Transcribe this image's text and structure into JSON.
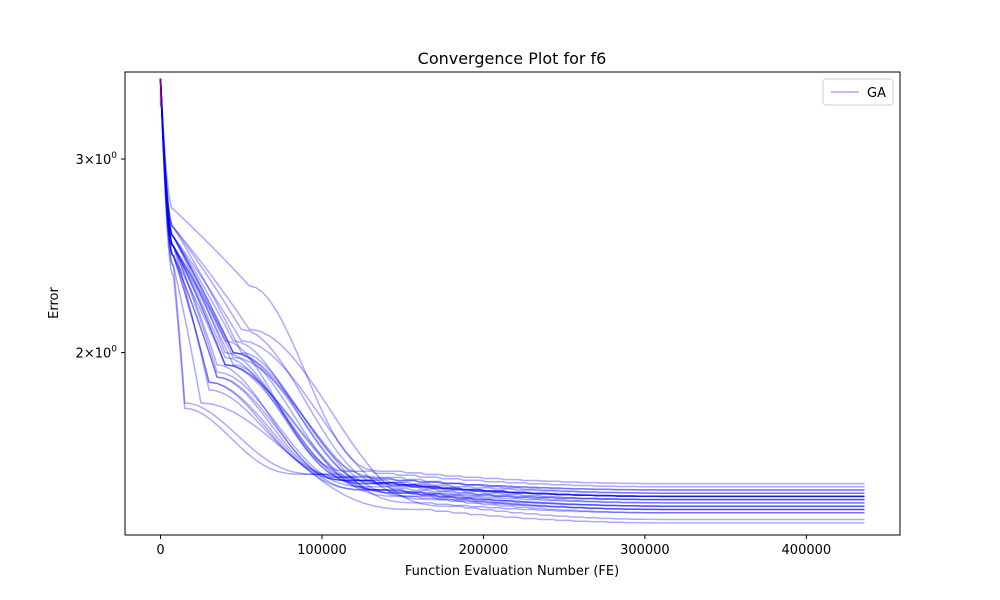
{
  "chart_data": {
    "type": "line",
    "title": "Convergence Plot for f6",
    "xlabel": "Function Evaluation Number (FE)",
    "ylabel": "Error",
    "yscale": "log",
    "xlim": [
      -22000,
      458000
    ],
    "ylim": [
      1.365,
      3.6
    ],
    "x_ticks": [
      {
        "value": 0,
        "label": "0"
      },
      {
        "value": 100000,
        "label": "100000"
      },
      {
        "value": 200000,
        "label": "200000"
      },
      {
        "value": 300000,
        "label": "300000"
      },
      {
        "value": 400000,
        "label": "400000"
      }
    ],
    "y_ticks": [
      {
        "value": 2,
        "base": "2",
        "mult": "×",
        "pow": "10",
        "exp": "0"
      },
      {
        "value": 3,
        "base": "3",
        "mult": "×",
        "pow": "10",
        "exp": "0"
      }
    ],
    "legend": {
      "label": "GA",
      "position": "top-right"
    },
    "colors": {
      "series": "#0000ff",
      "start_marker": "#ff0000"
    },
    "grid": false,
    "x_max": 436000,
    "start_value": 3.55,
    "series": [
      {
        "knee": 2.7,
        "mid_x": 55000,
        "mid_y": 2.3,
        "late_x": 140000,
        "late_y": 1.56,
        "final": 1.52
      },
      {
        "knee": 2.55,
        "mid_x": 40000,
        "mid_y": 2.05,
        "late_x": 120000,
        "late_y": 1.56,
        "final": 1.51
      },
      {
        "knee": 2.5,
        "mid_x": 30000,
        "mid_y": 1.85,
        "late_x": 120000,
        "late_y": 1.54,
        "final": 1.5
      },
      {
        "knee": 2.4,
        "mid_x": 15000,
        "mid_y": 1.8,
        "late_x": 100000,
        "late_y": 1.55,
        "final": 1.5
      },
      {
        "knee": 2.6,
        "mid_x": 50000,
        "mid_y": 2.0,
        "late_x": 140000,
        "late_y": 1.54,
        "final": 1.49
      },
      {
        "knee": 2.5,
        "mid_x": 45000,
        "mid_y": 1.95,
        "late_x": 130000,
        "late_y": 1.53,
        "final": 1.49
      },
      {
        "knee": 2.45,
        "mid_x": 35000,
        "mid_y": 1.9,
        "late_x": 120000,
        "late_y": 1.53,
        "final": 1.48
      },
      {
        "knee": 2.55,
        "mid_x": 40000,
        "mid_y": 2.0,
        "late_x": 130000,
        "late_y": 1.52,
        "final": 1.48
      },
      {
        "knee": 2.5,
        "mid_x": 35000,
        "mid_y": 1.95,
        "late_x": 120000,
        "late_y": 1.53,
        "final": 1.48
      },
      {
        "knee": 2.45,
        "mid_x": 30000,
        "mid_y": 1.88,
        "late_x": 120000,
        "late_y": 1.53,
        "final": 1.48
      },
      {
        "knee": 2.5,
        "mid_x": 40000,
        "mid_y": 1.98,
        "late_x": 130000,
        "late_y": 1.52,
        "final": 1.48
      },
      {
        "knee": 2.35,
        "mid_x": 15000,
        "mid_y": 1.78,
        "late_x": 90000,
        "late_y": 1.55,
        "final": 1.48
      },
      {
        "knee": 2.55,
        "mid_x": 45000,
        "mid_y": 2.05,
        "late_x": 140000,
        "late_y": 1.52,
        "final": 1.47
      },
      {
        "knee": 2.5,
        "mid_x": 35000,
        "mid_y": 1.92,
        "late_x": 130000,
        "late_y": 1.51,
        "final": 1.47
      },
      {
        "knee": 2.45,
        "mid_x": 30000,
        "mid_y": 1.88,
        "late_x": 130000,
        "late_y": 1.5,
        "final": 1.47
      },
      {
        "knee": 2.6,
        "mid_x": 50000,
        "mid_y": 2.1,
        "late_x": 150000,
        "late_y": 1.51,
        "final": 1.46
      },
      {
        "knee": 2.5,
        "mid_x": 40000,
        "mid_y": 1.95,
        "late_x": 140000,
        "late_y": 1.5,
        "final": 1.46
      },
      {
        "knee": 2.55,
        "mid_x": 45000,
        "mid_y": 2.0,
        "late_x": 140000,
        "late_y": 1.5,
        "final": 1.45
      },
      {
        "knee": 2.45,
        "mid_x": 35000,
        "mid_y": 1.9,
        "late_x": 130000,
        "late_y": 1.5,
        "final": 1.45
      },
      {
        "knee": 2.5,
        "mid_x": 40000,
        "mid_y": 1.95,
        "late_x": 150000,
        "late_y": 1.49,
        "final": 1.45
      },
      {
        "knee": 2.55,
        "mid_x": 45000,
        "mid_y": 2.0,
        "late_x": 150000,
        "late_y": 1.49,
        "final": 1.44
      },
      {
        "knee": 2.45,
        "mid_x": 40000,
        "mid_y": 1.95,
        "late_x": 150000,
        "late_y": 1.48,
        "final": 1.44
      },
      {
        "knee": 2.5,
        "mid_x": 45000,
        "mid_y": 1.98,
        "late_x": 160000,
        "late_y": 1.48,
        "final": 1.44
      },
      {
        "knee": 2.55,
        "mid_x": 50000,
        "mid_y": 2.05,
        "late_x": 170000,
        "late_y": 1.47,
        "final": 1.43
      },
      {
        "knee": 2.5,
        "mid_x": 45000,
        "mid_y": 2.0,
        "late_x": 160000,
        "late_y": 1.46,
        "final": 1.43
      },
      {
        "knee": 2.6,
        "mid_x": 55000,
        "mid_y": 2.1,
        "late_x": 180000,
        "late_y": 1.45,
        "final": 1.41
      },
      {
        "knee": 2.4,
        "mid_x": 25000,
        "mid_y": 1.8,
        "late_x": 160000,
        "late_y": 1.44,
        "final": 1.4
      }
    ]
  }
}
